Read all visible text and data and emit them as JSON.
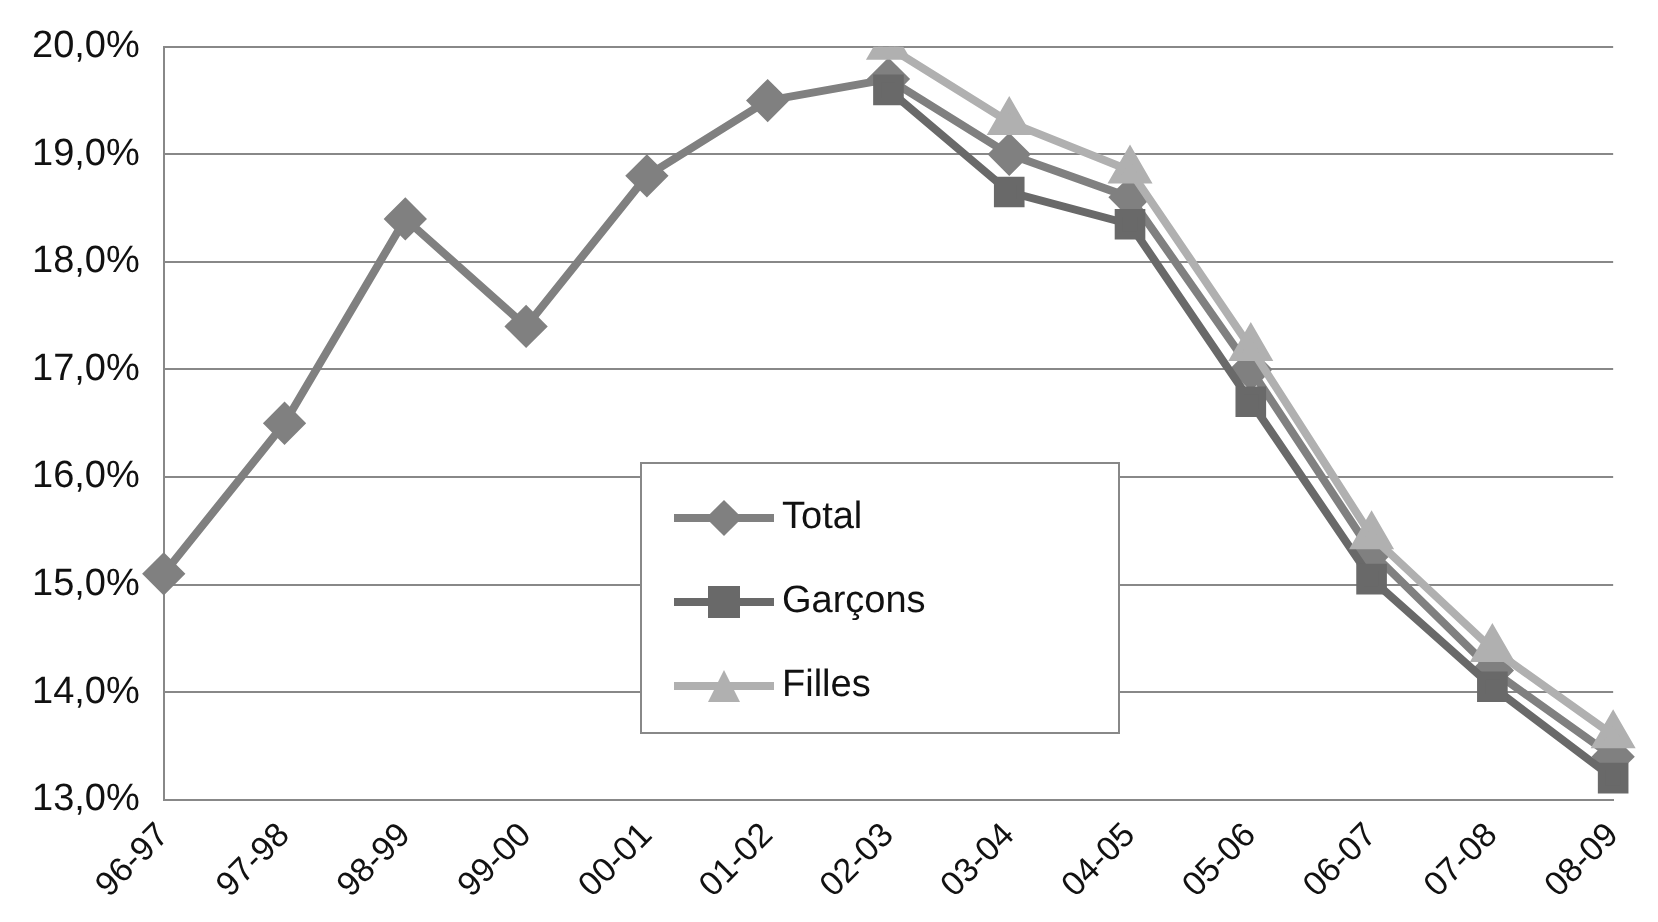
{
  "chart_data": {
    "type": "line",
    "categories": [
      "96-97",
      "97-98",
      "98-99",
      "99-00",
      "00-01",
      "01-02",
      "02-03",
      "03-04",
      "04-05",
      "05-06",
      "06-07",
      "07-08",
      "08-09"
    ],
    "series": [
      {
        "name": "Total",
        "color": "#808080",
        "marker": "diamond",
        "values": [
          15.1,
          16.5,
          18.4,
          17.4,
          18.8,
          19.5,
          19.7,
          19.0,
          18.6,
          17.0,
          15.3,
          14.2,
          13.4
        ]
      },
      {
        "name": "Garçons",
        "color": "#696969",
        "marker": "square",
        "values": [
          null,
          null,
          null,
          null,
          null,
          null,
          19.6,
          18.65,
          18.35,
          16.7,
          15.05,
          14.05,
          13.2
        ]
      },
      {
        "name": "Filles",
        "color": "#b0b0b0",
        "marker": "triangle",
        "values": [
          null,
          null,
          null,
          null,
          null,
          null,
          20.0,
          19.3,
          18.85,
          17.2,
          15.45,
          14.4,
          13.6
        ]
      }
    ],
    "ylim": [
      13,
      20
    ],
    "yticks": [
      {
        "value": 13,
        "label": "13,0%"
      },
      {
        "value": 14,
        "label": "14,0%"
      },
      {
        "value": 15,
        "label": "15,0%"
      },
      {
        "value": 16,
        "label": "16,0%"
      },
      {
        "value": 17,
        "label": "17,0%"
      },
      {
        "value": 18,
        "label": "18,0%"
      },
      {
        "value": 19,
        "label": "19,0%"
      },
      {
        "value": 20,
        "label": "20,0%"
      }
    ],
    "grid": "y",
    "legend": "bottom",
    "line_style": "solid"
  }
}
